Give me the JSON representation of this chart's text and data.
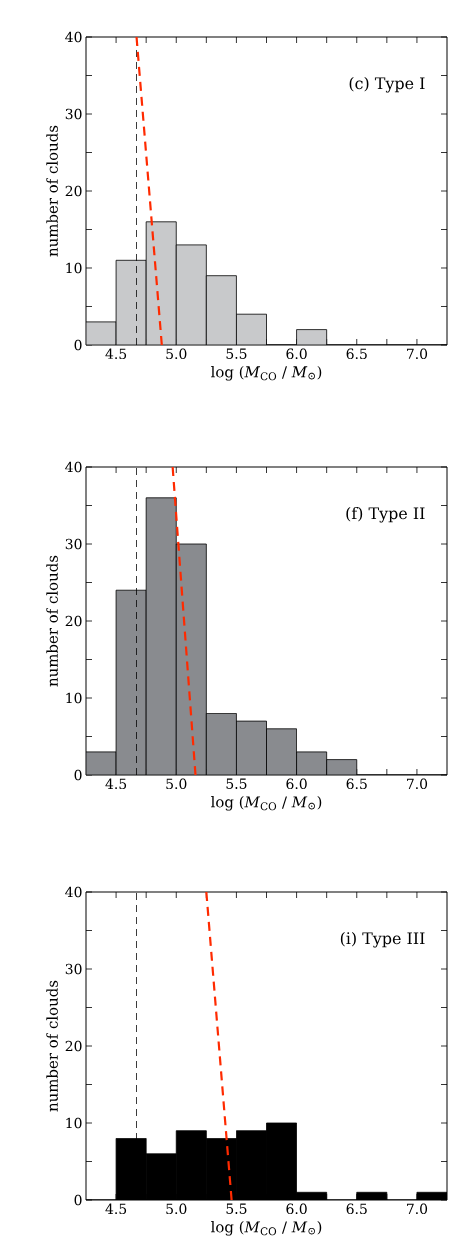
{
  "chart_data": [
    {
      "type": "histogram",
      "title": "(c) Type I",
      "xlabel": "log (*M*$_{CO}$ / *M*$_{⊙}$)",
      "ylabel": "number of clouds",
      "bins": [
        4.25,
        4.5,
        4.75,
        5.0,
        5.25,
        5.5,
        5.75,
        6.0,
        6.25,
        6.5,
        6.75,
        7.0,
        7.25
      ],
      "values": [
        3,
        11,
        16,
        13,
        9,
        4,
        0,
        2,
        0,
        0,
        0,
        0
      ],
      "color": "#c8c9cb",
      "series": [
        {
          "type": "line",
          "x": [
            4.67,
            4.88
          ],
          "values": [
            40,
            0
          ],
          "color": "#ff2a00",
          "line_style": "dashed"
        }
      ],
      "ref_lines": [
        {
          "axis": "x",
          "value": 4.67,
          "color": "#000000",
          "line_style": "dashed"
        }
      ],
      "xlim": [
        4.25,
        7.25
      ],
      "ylim": [
        0,
        40
      ],
      "xticks": [
        4.5,
        {
          "value": 4.75,
          "label": null
        },
        {
          "value": 5.0,
          "label": "5.0"
        },
        {
          "value": 5.25,
          "label": null
        },
        5.5,
        {
          "value": 5.75,
          "label": null
        },
        {
          "value": 6.0,
          "label": "6.0"
        },
        {
          "value": 6.25,
          "label": null
        },
        6.5,
        {
          "value": 6.75,
          "label": null
        },
        {
          "value": 7.0,
          "label": "7.0"
        }
      ],
      "yticks": [
        0,
        {
          "value": 5,
          "label": null
        },
        10,
        {
          "value": 15,
          "label": null
        },
        20,
        {
          "value": 25,
          "label": null
        },
        30,
        {
          "value": 35,
          "label": null
        },
        40
      ]
    },
    {
      "type": "histogram",
      "title": "(f) Type II",
      "xlabel": "log (*M*$_{CO}$ / *M*$_{⊙}$)",
      "ylabel": "number of clouds",
      "bins": [
        4.25,
        4.5,
        4.75,
        5.0,
        5.25,
        5.5,
        5.75,
        6.0,
        6.25,
        6.5,
        6.75,
        7.0,
        7.25
      ],
      "values": [
        3,
        24,
        36,
        30,
        8,
        7,
        6,
        3,
        2,
        0,
        0,
        0
      ],
      "color": "#898b8f",
      "series": [
        {
          "type": "line",
          "x": [
            4.97,
            5.16
          ],
          "values": [
            40,
            0
          ],
          "color": "#ff2a00",
          "line_style": "dashed"
        }
      ],
      "ref_lines": [
        {
          "axis": "x",
          "value": 4.67,
          "color": "#000000",
          "line_style": "dashed"
        }
      ],
      "xlim": [
        4.25,
        7.25
      ],
      "ylim": [
        0,
        40
      ],
      "xticks": [
        4.5,
        {
          "value": 4.75,
          "label": null
        },
        {
          "value": 5.0,
          "label": "5.0"
        },
        {
          "value": 5.25,
          "label": null
        },
        5.5,
        {
          "value": 5.75,
          "label": null
        },
        {
          "value": 6.0,
          "label": "6.0"
        },
        {
          "value": 6.25,
          "label": null
        },
        6.5,
        {
          "value": 6.75,
          "label": null
        },
        {
          "value": 7.0,
          "label": "7.0"
        }
      ],
      "yticks": [
        0,
        {
          "value": 5,
          "label": null
        },
        10,
        {
          "value": 15,
          "label": null
        },
        20,
        {
          "value": 25,
          "label": null
        },
        30,
        {
          "value": 35,
          "label": null
        },
        40
      ]
    },
    {
      "type": "histogram",
      "title": "(i) Type III",
      "xlabel": "log (*M*$_{CO}$ / *M*$_{⊙}$)",
      "ylabel": "number of clouds",
      "bins": [
        4.25,
        4.5,
        4.75,
        5.0,
        5.25,
        5.5,
        5.75,
        6.0,
        6.25,
        6.5,
        6.75,
        7.0,
        7.25
      ],
      "values": [
        0,
        8,
        6,
        9,
        8,
        9,
        10,
        1,
        0,
        1,
        0,
        1
      ],
      "color": "#000000",
      "series": [
        {
          "type": "line",
          "x": [
            5.25,
            5.46
          ],
          "values": [
            40,
            0
          ],
          "color": "#ff2a00",
          "line_style": "dashed"
        }
      ],
      "ref_lines": [
        {
          "axis": "x",
          "value": 4.67,
          "color": "#000000",
          "line_style": "dashed"
        }
      ],
      "xlim": [
        4.25,
        7.25
      ],
      "ylim": [
        0,
        40
      ],
      "xticks": [
        4.5,
        {
          "value": 4.75,
          "label": null
        },
        {
          "value": 5.0,
          "label": "5.0"
        },
        {
          "value": 5.25,
          "label": null
        },
        5.5,
        {
          "value": 5.75,
          "label": null
        },
        {
          "value": 6.0,
          "label": "6.0"
        },
        {
          "value": 6.25,
          "label": null
        },
        6.5,
        {
          "value": 6.75,
          "label": null
        },
        {
          "value": 7.0,
          "label": "7.0"
        }
      ],
      "yticks": [
        0,
        {
          "value": 5,
          "label": null
        },
        10,
        {
          "value": 15,
          "label": null
        },
        20,
        {
          "value": 25,
          "label": null
        },
        30,
        {
          "value": 35,
          "label": null
        },
        40
      ]
    }
  ]
}
